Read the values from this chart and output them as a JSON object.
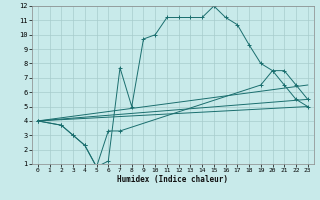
{
  "xlabel": "Humidex (Indice chaleur)",
  "bg_color": "#c8eaea",
  "grid_color": "#a8cccc",
  "line_color": "#1a6e6e",
  "xlim": [
    -0.5,
    23.5
  ],
  "ylim": [
    1,
    12
  ],
  "xticks": [
    0,
    1,
    2,
    3,
    4,
    5,
    6,
    7,
    8,
    9,
    10,
    11,
    12,
    13,
    14,
    15,
    16,
    17,
    18,
    19,
    20,
    21,
    22,
    23
  ],
  "yticks": [
    1,
    2,
    3,
    4,
    5,
    6,
    7,
    8,
    9,
    10,
    11,
    12
  ],
  "line1_x": [
    0,
    2,
    3,
    4,
    5,
    6,
    7,
    8,
    9,
    10,
    11,
    12,
    13,
    14,
    15,
    16,
    17,
    18,
    19,
    20,
    21,
    22,
    23
  ],
  "line1_y": [
    4,
    3.7,
    3,
    2.3,
    0.8,
    1.2,
    7.7,
    5,
    9.7,
    10,
    11.2,
    11.2,
    11.2,
    11.2,
    12,
    11.2,
    10.7,
    9.3,
    8,
    7.5,
    6.5,
    5.5,
    5
  ],
  "line2_x": [
    0,
    2,
    3,
    4,
    5,
    6,
    7,
    19,
    20,
    21,
    22,
    23
  ],
  "line2_y": [
    4,
    3.7,
    3,
    2.3,
    0.8,
    3.3,
    3.3,
    6.5,
    7.5,
    7.5,
    6.5,
    5.5
  ],
  "line3_x": [
    0,
    23
  ],
  "line3_y": [
    4,
    5.0
  ],
  "line4_x": [
    0,
    23
  ],
  "line4_y": [
    4,
    6.5
  ],
  "line5_x": [
    0,
    23
  ],
  "line5_y": [
    4,
    5.5
  ]
}
